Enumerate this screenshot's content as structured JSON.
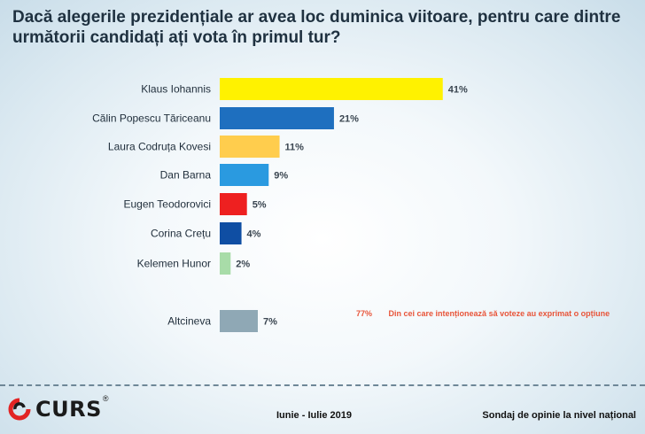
{
  "chart_data": {
    "type": "bar",
    "orientation": "horizontal",
    "title": "Dacă alegerile prezidențiale ar avea loc duminica viitoare, pentru care dintre următorii candidați ați vota în primul tur?",
    "categories": [
      "Klaus Iohannis",
      "Călin Popescu Tăriceanu",
      "Laura Codruța Kovesi",
      "Dan Barna",
      "Eugen Teodorovici",
      "Corina Crețu",
      "Kelemen Hunor",
      "Altcineva"
    ],
    "values": [
      41,
      21,
      11,
      9,
      5,
      4,
      2,
      7
    ],
    "value_labels": [
      "41%",
      "21%",
      "11%",
      "9%",
      "5%",
      "4%",
      "2%",
      "7%"
    ],
    "colors": [
      "#fff200",
      "#1e6fbf",
      "#ffcd4d",
      "#2a9ae0",
      "#ee2020",
      "#0f4ea3",
      "#a8dca8",
      "#8fa8b5"
    ],
    "unit": "%"
  },
  "note": {
    "percent": "77%",
    "text": "Din cei care intenționează să voteze au exprimat o opțiune"
  },
  "footer": {
    "logo_text": "CURS",
    "logo_mark": "®",
    "period": "Iunie - Iulie 2019",
    "source": "Sondaj de opinie la nivel național"
  }
}
